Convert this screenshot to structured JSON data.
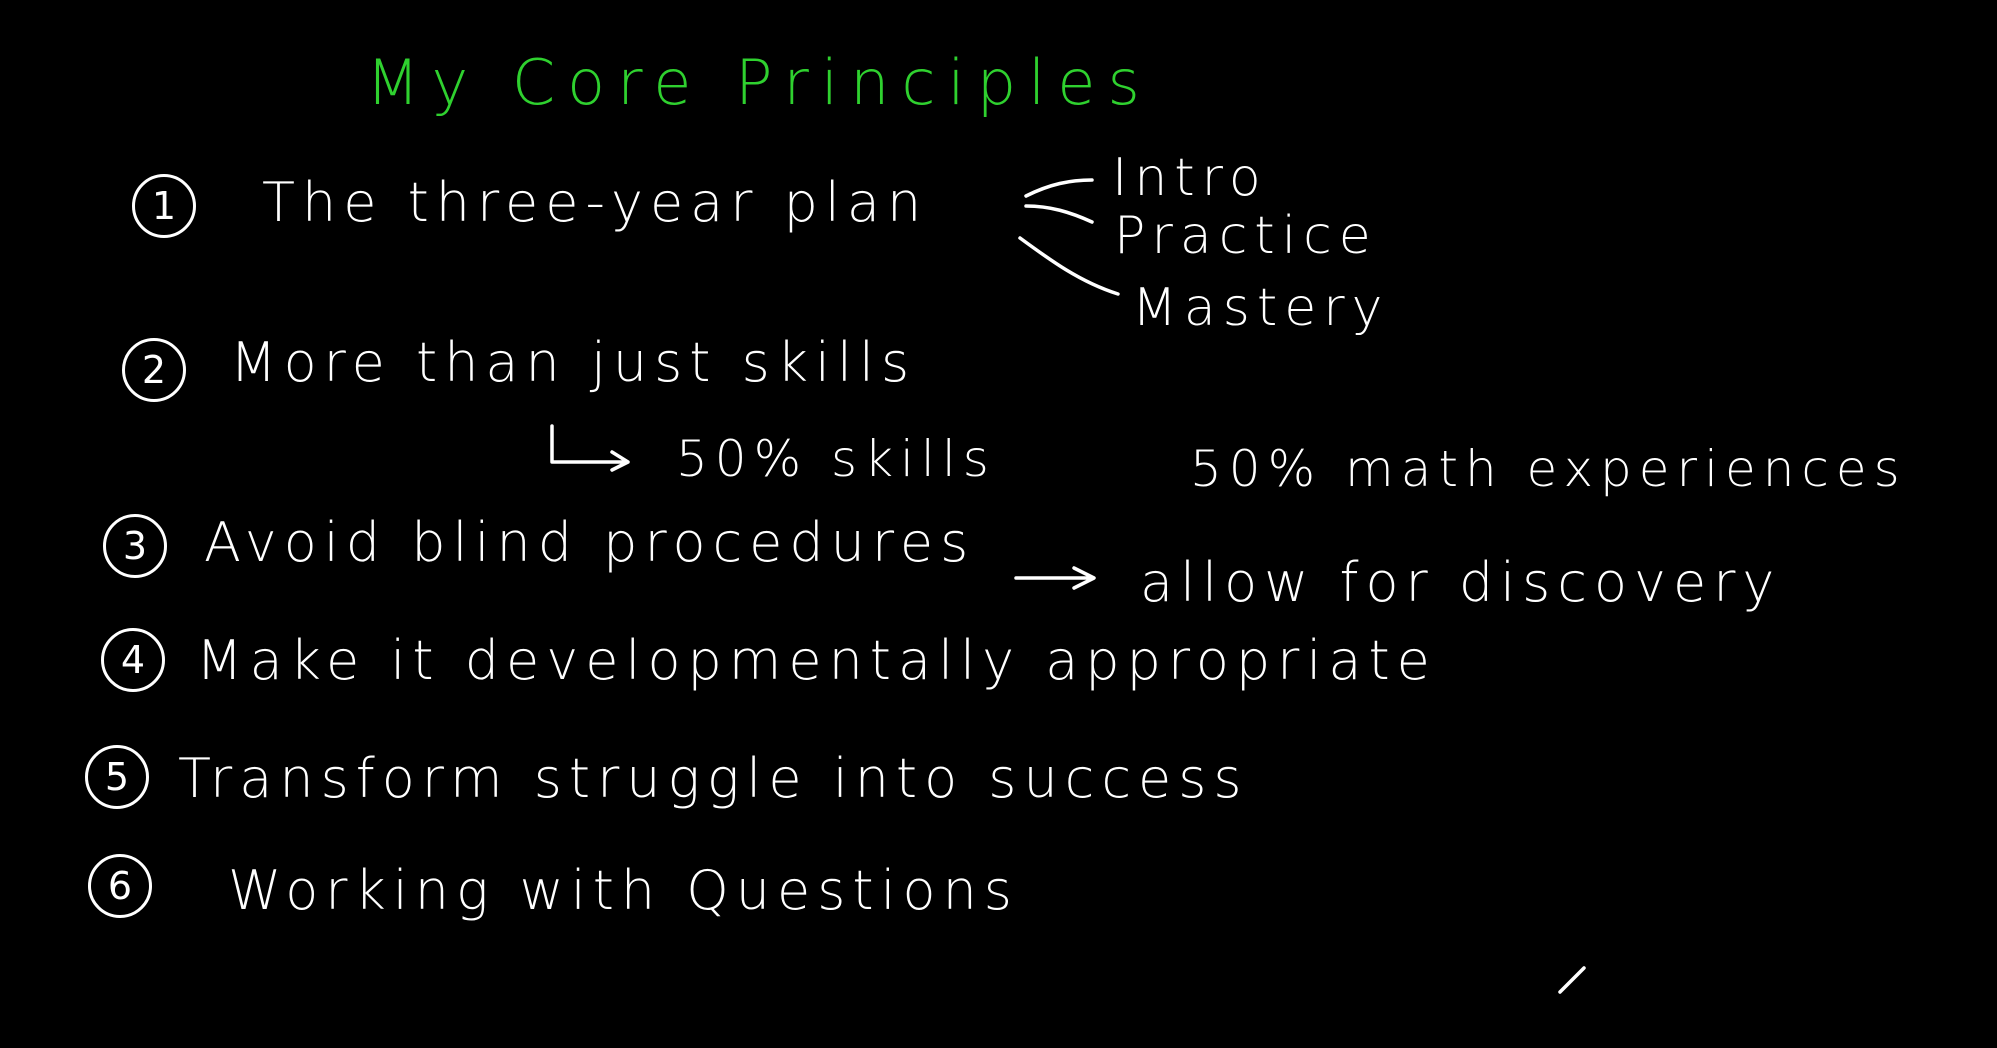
{
  "title": "My Core Principles",
  "principles": [
    {
      "number": "1",
      "text": "The three-year plan"
    },
    {
      "number": "2",
      "text": "More than just skills"
    },
    {
      "number": "3",
      "text": "Avoid blind procedures"
    },
    {
      "number": "4",
      "text": "Make it developmentally appropriate"
    },
    {
      "number": "5",
      "text": "Transform struggle into success"
    },
    {
      "number": "6",
      "text": "Working with Questions"
    }
  ],
  "plan_stages": [
    "Intro",
    "Practice",
    "Mastery"
  ],
  "skills_split": {
    "skills": "50% skills",
    "experiences": "50% math experiences"
  },
  "discovery_note": "allow for discovery",
  "colors": {
    "background": "#000000",
    "title": "#2fd12f",
    "ink": "#ffffff"
  }
}
